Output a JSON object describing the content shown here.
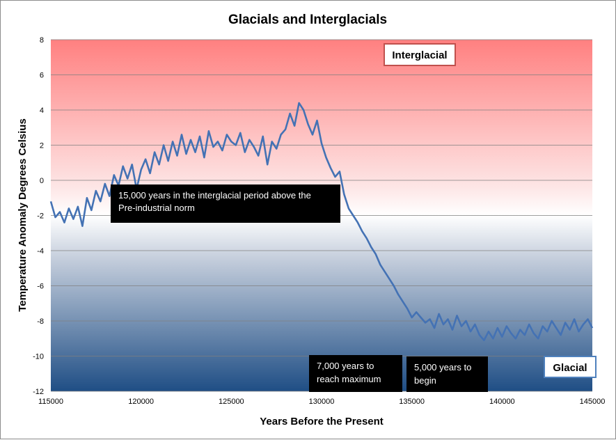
{
  "chart_data": {
    "type": "line",
    "title": "Glacials and Interglacials",
    "xlabel": "Years Before the Present",
    "ylabel": "Temperature Anomaly Degrees Celsius",
    "xlim": [
      115000,
      145000
    ],
    "ylim": [
      -12,
      8
    ],
    "x_ticks": [
      "115000",
      "120000",
      "125000",
      "130000",
      "135000",
      "140000",
      "145000"
    ],
    "y_ticks": [
      "8",
      "6",
      "4",
      "2",
      "0",
      "-2",
      "-4",
      "-6",
      "-8",
      "-10",
      "-12"
    ],
    "grid": true,
    "legend": "none",
    "colors": {
      "line": "#4472b4",
      "interglacial": "#ff8080",
      "glacial": "#1f4e85"
    },
    "series": [
      {
        "x": [
          115000,
          115250,
          115500,
          115750,
          116000,
          116250,
          116500,
          116750,
          117000,
          117250,
          117500,
          117750,
          118000,
          118250,
          118500,
          118750,
          119000,
          119250,
          119500,
          119750,
          120000,
          120250,
          120500,
          120750,
          121000,
          121250,
          121500,
          121750,
          122000,
          122250,
          122500,
          122750,
          123000,
          123250,
          123500,
          123750,
          124000,
          124250,
          124500,
          124750,
          125000,
          125250,
          125500,
          125750,
          126000,
          126250,
          126500,
          126750,
          127000,
          127250,
          127500,
          127750,
          128000,
          128250,
          128500,
          128750,
          129000,
          129250,
          129500,
          129750,
          130000,
          130250,
          130500,
          130750,
          131000,
          131250,
          131500,
          131750,
          132000,
          132250,
          132500,
          132750,
          133000,
          133250,
          133500,
          133750,
          134000,
          134250,
          134500,
          134750,
          135000,
          135250,
          135500,
          135750,
          136000,
          136250,
          136500,
          136750,
          137000,
          137250,
          137500,
          137750,
          138000,
          138250,
          138500,
          138750,
          139000,
          139250,
          139500,
          139750,
          140000,
          140250,
          140500,
          140750,
          141000,
          141250,
          141500,
          141750,
          142000,
          142250,
          142500,
          142750,
          143000,
          143250,
          143500,
          143750,
          144000,
          144250,
          144500,
          144750,
          145000
        ],
        "values": [
          -1.2,
          -2.1,
          -1.8,
          -2.4,
          -1.6,
          -2.2,
          -1.5,
          -2.6,
          -1.0,
          -1.7,
          -0.6,
          -1.2,
          -0.2,
          -0.9,
          0.3,
          -0.3,
          0.8,
          0.1,
          0.9,
          -0.5,
          0.6,
          1.2,
          0.4,
          1.6,
          0.9,
          2.0,
          1.1,
          2.2,
          1.4,
          2.6,
          1.5,
          2.3,
          1.6,
          2.5,
          1.3,
          2.8,
          1.9,
          2.2,
          1.7,
          2.6,
          2.2,
          2.0,
          2.7,
          1.6,
          2.3,
          1.9,
          1.4,
          2.5,
          0.9,
          2.2,
          1.8,
          2.6,
          2.9,
          3.8,
          3.1,
          4.4,
          4.0,
          3.2,
          2.6,
          3.4,
          2.1,
          1.3,
          0.7,
          0.2,
          0.5,
          -0.8,
          -1.6,
          -2.0,
          -2.4,
          -2.9,
          -3.3,
          -3.8,
          -4.2,
          -4.8,
          -5.2,
          -5.6,
          -6.0,
          -6.5,
          -6.9,
          -7.3,
          -7.8,
          -7.5,
          -7.8,
          -8.1,
          -7.9,
          -8.4,
          -7.6,
          -8.2,
          -7.9,
          -8.5,
          -7.7,
          -8.3,
          -8.0,
          -8.6,
          -8.2,
          -8.8,
          -9.1,
          -8.6,
          -9.0,
          -8.4,
          -8.9,
          -8.3,
          -8.7,
          -9.0,
          -8.5,
          -8.8,
          -8.2,
          -8.7,
          -9.0,
          -8.3,
          -8.6,
          -8.0,
          -8.4,
          -8.8,
          -8.1,
          -8.5,
          -7.9,
          -8.6,
          -8.2,
          -7.9,
          -8.4
        ]
      }
    ],
    "annotations": [
      {
        "lines": [
          "15,000 years in the interglacial period above the",
          "Pre-industrial norm"
        ]
      },
      {
        "lines": [
          "7,000 years to",
          "reach maximum"
        ]
      },
      {
        "lines": [
          "5,000 years to",
          "begin"
        ]
      }
    ],
    "region_labels": {
      "interglacial": "Interglacial",
      "glacial": "Glacial"
    }
  }
}
